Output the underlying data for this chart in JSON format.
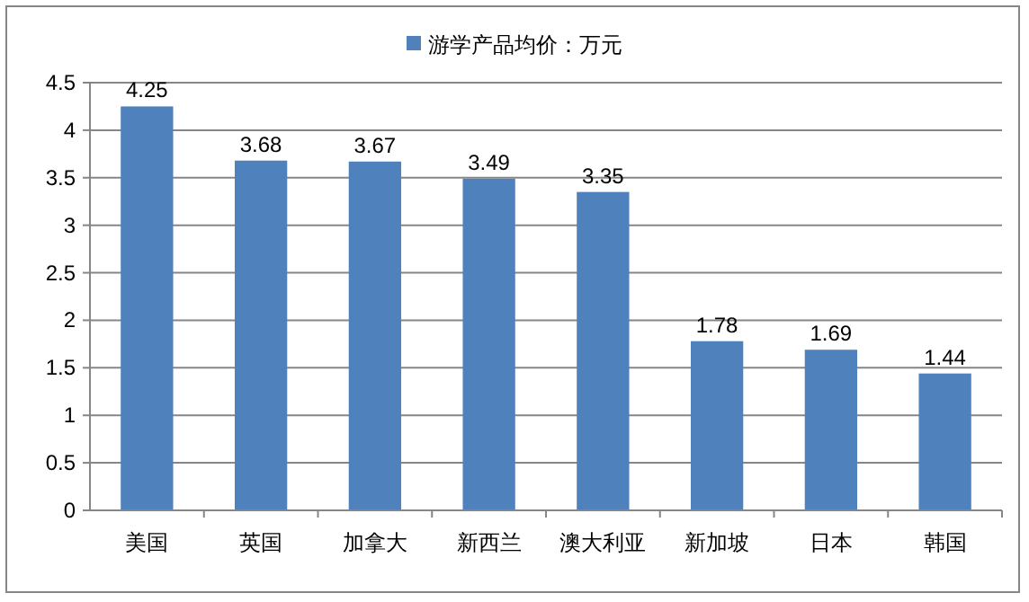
{
  "chart_data": {
    "type": "bar",
    "categories": [
      "美国",
      "英国",
      "加拿大",
      "新西兰",
      "澳大利亚",
      "新加坡",
      "日本",
      "韩国"
    ],
    "series": [
      {
        "name": "游学产品均价：万元",
        "color": "#4f81bd",
        "values": [
          4.25,
          3.68,
          3.67,
          3.49,
          3.35,
          1.78,
          1.69,
          1.44
        ]
      }
    ],
    "ylim": [
      0,
      4.5
    ],
    "yticks": [
      0,
      0.5,
      1,
      1.5,
      2,
      2.5,
      3,
      3.5,
      4,
      4.5
    ],
    "grid": "y",
    "legend": "top",
    "data_labels": true
  }
}
